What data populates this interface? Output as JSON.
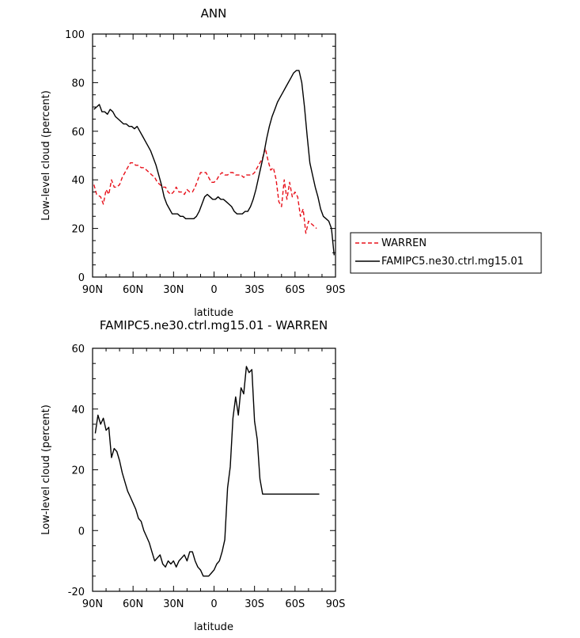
{
  "chart_data": [
    {
      "type": "line",
      "title": "ANN",
      "xlabel": "latitude",
      "ylabel": "Low-level cloud (percent)",
      "xlim": [
        90,
        -90
      ],
      "ylim": [
        0,
        100
      ],
      "xticks": [
        {
          "value": 90,
          "label": "90N"
        },
        {
          "value": 60,
          "label": "60N"
        },
        {
          "value": 30,
          "label": "30N"
        },
        {
          "value": 0,
          "label": "0"
        },
        {
          "value": -30,
          "label": "30S"
        },
        {
          "value": -60,
          "label": "60S"
        },
        {
          "value": -90,
          "label": "90S"
        }
      ],
      "yticks": [
        0,
        20,
        40,
        60,
        80,
        100
      ],
      "legend_position": "right-outside",
      "series": [
        {
          "name": "WARREN",
          "color": "#e8101a",
          "dash": true,
          "x": [
            89,
            87,
            84,
            82,
            80,
            78,
            76,
            74,
            72,
            70,
            68,
            66,
            64,
            62,
            60,
            58,
            56,
            54,
            52,
            50,
            48,
            46,
            44,
            42,
            40,
            38,
            36,
            34,
            32,
            30,
            28,
            26,
            24,
            22,
            20,
            18,
            16,
            14,
            12,
            10,
            8,
            6,
            4,
            2,
            0,
            -2,
            -4,
            -6,
            -8,
            -10,
            -12,
            -14,
            -16,
            -18,
            -20,
            -22,
            -24,
            -26,
            -28,
            -30,
            -32,
            -34,
            -36,
            -38,
            -40,
            -42,
            -44,
            -46,
            -48,
            -50,
            -52,
            -54,
            -56,
            -58,
            -60,
            -62,
            -64,
            -66,
            -68,
            -70,
            -72,
            -74,
            -76
          ],
          "y": [
            38,
            34,
            33,
            30,
            36,
            34,
            40,
            37,
            37,
            38,
            41,
            43,
            45,
            47,
            47,
            46,
            46,
            45,
            45,
            44,
            43,
            42,
            41,
            39,
            38,
            37,
            37,
            35,
            34,
            35,
            37,
            35,
            35,
            34,
            36,
            35,
            35,
            37,
            40,
            43,
            43,
            43,
            41,
            39,
            39,
            40,
            42,
            43,
            42,
            42,
            43,
            43,
            42,
            42,
            42,
            41,
            42,
            42,
            42,
            43,
            45,
            47,
            49,
            53,
            48,
            44,
            45,
            40,
            31,
            29,
            40,
            32,
            39,
            33,
            35,
            33,
            25,
            28,
            18,
            23,
            22,
            21,
            20
          ]
        },
        {
          "name": "FAMIPC5.ne30.ctrl.mg15.01",
          "color": "#000000",
          "dash": false,
          "x": [
            89,
            87,
            85,
            83,
            81,
            79,
            77,
            75,
            73,
            71,
            69,
            67,
            65,
            63,
            61,
            59,
            57,
            55,
            53,
            51,
            49,
            47,
            45,
            43,
            41,
            39,
            37,
            35,
            33,
            31,
            29,
            27,
            25,
            23,
            21,
            19,
            17,
            15,
            13,
            11,
            9,
            7,
            5,
            3,
            1,
            -1,
            -3,
            -5,
            -7,
            -9,
            -11,
            -13,
            -15,
            -17,
            -19,
            -21,
            -23,
            -25,
            -27,
            -29,
            -31,
            -33,
            -35,
            -37,
            -39,
            -41,
            -43,
            -45,
            -47,
            -49,
            -51,
            -53,
            -55,
            -57,
            -59,
            -61,
            -63,
            -65,
            -67,
            -69,
            -71,
            -73,
            -75,
            -77,
            -79,
            -81,
            -83,
            -85,
            -87,
            -89
          ],
          "y": [
            69,
            70,
            71,
            68,
            68,
            67,
            69,
            68,
            66,
            65,
            64,
            63,
            63,
            62,
            62,
            61,
            62,
            60,
            58,
            56,
            54,
            52,
            49,
            46,
            42,
            38,
            33,
            30,
            28,
            26,
            26,
            26,
            25,
            25,
            24,
            24,
            24,
            24,
            25,
            27,
            30,
            33,
            34,
            33,
            32,
            32,
            33,
            32,
            32,
            31,
            30,
            29,
            27,
            26,
            26,
            26,
            27,
            27,
            29,
            32,
            36,
            41,
            46,
            51,
            57,
            62,
            66,
            69,
            72,
            74,
            76,
            78,
            80,
            82,
            84,
            85,
            85,
            80,
            70,
            58,
            47,
            42,
            37,
            33,
            28,
            25,
            24,
            23,
            20,
            9
          ]
        }
      ]
    },
    {
      "type": "line",
      "title": "FAMIPC5.ne30.ctrl.mg15.01 - WARREN",
      "xlabel": "latitude",
      "ylabel": "Low-level cloud (percent)",
      "xlim": [
        90,
        -90
      ],
      "ylim": [
        -20,
        60
      ],
      "xticks": [
        {
          "value": 90,
          "label": "90N"
        },
        {
          "value": 60,
          "label": "60N"
        },
        {
          "value": 30,
          "label": "30N"
        },
        {
          "value": 0,
          "label": "0"
        },
        {
          "value": -30,
          "label": "30S"
        },
        {
          "value": -60,
          "label": "60S"
        },
        {
          "value": -90,
          "label": "90S"
        }
      ],
      "yticks": [
        -20,
        0,
        20,
        40,
        60
      ],
      "series": [
        {
          "color": "#000000",
          "dash": false,
          "x": [
            88,
            86,
            84,
            82,
            80,
            78,
            76,
            74,
            72,
            70,
            68,
            66,
            64,
            62,
            60,
            58,
            56,
            54,
            52,
            50,
            48,
            46,
            44,
            42,
            40,
            38,
            36,
            34,
            32,
            30,
            28,
            26,
            24,
            22,
            20,
            18,
            16,
            14,
            12,
            10,
            8,
            6,
            4,
            2,
            0,
            -2,
            -4,
            -6,
            -8,
            -10,
            -12,
            -14,
            -16,
            -18,
            -20,
            -22,
            -24,
            -26,
            -28,
            -30,
            -32,
            -34,
            -36,
            -38,
            -40,
            -42,
            -44,
            -46,
            -48,
            -50,
            -52,
            -54,
            -56,
            -58,
            -60,
            -62,
            -64,
            -66,
            -68,
            -70,
            -72,
            -74,
            -76,
            -78
          ],
          "y": [
            32,
            38,
            35,
            37,
            33,
            34,
            24,
            27,
            26,
            23,
            19,
            16,
            13,
            11,
            9,
            7,
            4,
            3,
            0,
            -2,
            -4,
            -7,
            -10,
            -9,
            -8,
            -11,
            -12,
            -10,
            -11,
            -10,
            -12,
            -10,
            -9,
            -8,
            -10,
            -7,
            -7,
            -10,
            -12,
            -13,
            -15,
            -15,
            -15,
            -14,
            -13,
            -11,
            -10,
            -7,
            -3,
            14,
            21,
            37,
            44,
            38,
            47,
            45,
            54,
            52,
            53,
            36,
            30,
            17,
            12,
            12,
            12,
            12,
            12,
            12,
            12,
            12,
            12,
            12,
            12,
            12,
            12,
            12,
            12,
            12,
            12,
            12,
            12,
            12,
            12,
            12
          ]
        }
      ]
    }
  ]
}
